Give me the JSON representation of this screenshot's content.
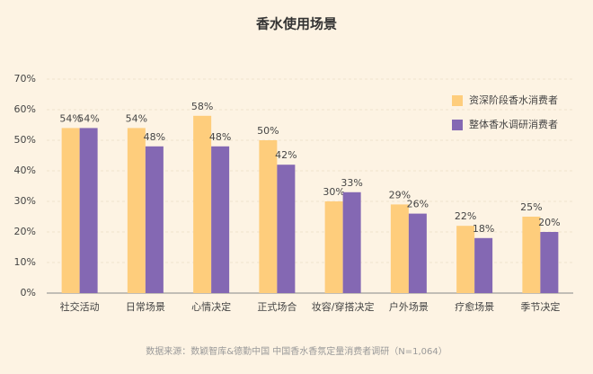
{
  "chart_data": {
    "type": "bar",
    "title": "香水使用场景",
    "categories": [
      "社交活动",
      "日常场景",
      "心情决定",
      "正式场合",
      "妆容/穿搭决定",
      "户外场景",
      "疗愈场景",
      "季节决定"
    ],
    "series": [
      {
        "name": "资深阶段香水消费者",
        "color": "#FECD7C",
        "values": [
          54,
          54,
          58,
          50,
          30,
          29,
          22,
          25
        ],
        "value_labels": [
          "54%",
          "54%",
          "58%",
          "50%",
          "30%",
          "29%",
          "22%",
          "25%"
        ]
      },
      {
        "name": "整体香水调研消费者",
        "color": "#8468B3",
        "values": [
          54,
          48,
          48,
          42,
          33,
          26,
          18,
          20
        ],
        "value_labels": [
          "54%",
          "48%",
          "48%",
          "42%",
          "33%",
          "26%",
          "18%",
          "20%"
        ]
      }
    ],
    "ylim": [
      0,
      70
    ],
    "yticks": [
      {
        "value": 0,
        "label": "0%"
      },
      {
        "value": 10,
        "label": "10%"
      },
      {
        "value": 20,
        "label": "20%"
      },
      {
        "value": 30,
        "label": "30%"
      },
      {
        "value": 40,
        "label": "40%"
      },
      {
        "value": 50,
        "label": "50%"
      },
      {
        "value": 60,
        "label": "60%"
      },
      {
        "value": 70,
        "label": "70%"
      }
    ],
    "grid": true,
    "legend": "top-right",
    "source": "数据来源：数颖智库&德勤中国   中国香水香氛定量消费者调研（N=1,064）"
  }
}
